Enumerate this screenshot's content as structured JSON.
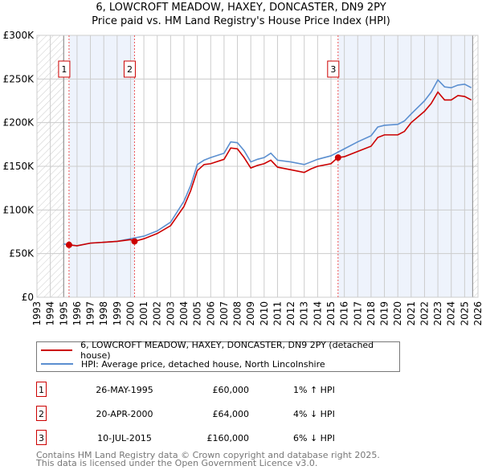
{
  "chart_data": {
    "type": "line",
    "title": "6, LOWCROFT MEADOW, HAXEY, DONCASTER, DN9 2PY",
    "subtitle": "Price paid vs. HM Land Registry's House Price Index (HPI)",
    "xlim": [
      1993,
      2026
    ],
    "ylim": [
      0,
      300000
    ],
    "yticks": [
      {
        "v": 0,
        "label": "£0"
      },
      {
        "v": 50000,
        "label": "£50K"
      },
      {
        "v": 100000,
        "label": "£100K"
      },
      {
        "v": 150000,
        "label": "£150K"
      },
      {
        "v": 200000,
        "label": "£200K"
      },
      {
        "v": 250000,
        "label": "£250K"
      },
      {
        "v": 300000,
        "label": "£300K"
      }
    ],
    "xticks": [
      "1993",
      "1994",
      "1995",
      "1996",
      "1997",
      "1998",
      "1999",
      "2000",
      "2001",
      "2002",
      "2003",
      "2004",
      "2005",
      "2006",
      "2007",
      "2008",
      "2009",
      "2010",
      "2011",
      "2012",
      "2013",
      "2014",
      "2015",
      "2016",
      "2017",
      "2018",
      "2019",
      "2020",
      "2021",
      "2022",
      "2023",
      "2024",
      "2025",
      "2026"
    ],
    "grid": true,
    "colors": {
      "price": "#cc0000",
      "hpi": "#5b8fd0",
      "shade": "#eef3fc"
    },
    "series": [
      {
        "name": "6, LOWCROFT MEADOW, HAXEY, DONCASTER, DN9 2PY (detached house)",
        "color": "#cc0000",
        "x": [
          1995.4,
          1996,
          1997,
          1998,
          1999,
          2000,
          2000.3,
          2001,
          2002,
          2003,
          2004,
          2004.5,
          2005,
          2005.5,
          2006,
          2007,
          2007.5,
          2008,
          2008.5,
          2009,
          2009.5,
          2010,
          2010.5,
          2011,
          2012,
          2013,
          2013.5,
          2014,
          2015,
          2015.5,
          2016,
          2017,
          2018,
          2018.5,
          2019,
          2020,
          2020.5,
          2021,
          2022,
          2022.5,
          2023,
          2023.5,
          2024,
          2024.5,
          2025,
          2025.5
        ],
        "y": [
          60,
          59,
          62,
          63,
          64,
          66,
          64,
          67,
          73,
          82,
          104,
          122,
          145,
          152,
          153,
          158,
          171,
          170,
          160,
          148,
          151,
          153,
          157,
          149,
          146,
          143,
          147,
          150,
          153,
          160,
          161,
          167,
          173,
          183,
          186,
          186,
          190,
          200,
          213,
          222,
          235,
          226,
          226,
          231,
          230,
          226
        ]
      },
      {
        "name": "HPI: Average price, detached house, North Lincolnshire",
        "color": "#5b8fd0",
        "x": [
          1995,
          1996,
          1997,
          1998,
          1999,
          2000,
          2001,
          2002,
          2003,
          2004,
          2004.5,
          2005,
          2005.5,
          2006,
          2007,
          2007.5,
          2008,
          2008.5,
          2009,
          2009.5,
          2010,
          2010.5,
          2011,
          2012,
          2013,
          2013.5,
          2014,
          2015,
          2015.5,
          2016,
          2017,
          2018,
          2018.5,
          2019,
          2020,
          2020.5,
          2021,
          2022,
          2022.5,
          2023,
          2023.5,
          2024,
          2024.5,
          2025,
          2025.5
        ],
        "y": [
          61,
          59,
          62,
          63,
          64,
          67,
          70,
          76,
          86,
          110,
          128,
          152,
          157,
          160,
          165,
          178,
          177,
          168,
          155,
          158,
          160,
          165,
          157,
          155,
          152,
          155,
          158,
          162,
          166,
          170,
          178,
          185,
          195,
          197,
          198,
          202,
          210,
          225,
          235,
          249,
          241,
          240,
          243,
          244,
          240
        ]
      }
    ],
    "y_units": 1000,
    "sales": [
      {
        "n": "1",
        "x": 1995.4,
        "y": 60
      },
      {
        "n": "2",
        "x": 2000.3,
        "y": 64
      },
      {
        "n": "3",
        "x": 2015.53,
        "y": 160
      }
    ],
    "shaded": [
      [
        1995.4,
        2000.3
      ],
      [
        2015.53,
        2025.6
      ]
    ],
    "hatched": [
      [
        1993,
        1995
      ],
      [
        2025.6,
        2026
      ]
    ]
  },
  "legend": {
    "price": "6, LOWCROFT MEADOW, HAXEY, DONCASTER, DN9 2PY (detached house)",
    "hpi": "HPI: Average price, detached house, North Lincolnshire"
  },
  "table": [
    {
      "n": "1",
      "date": "26-MAY-1995",
      "price": "£60,000",
      "hpi": "1% ↑ HPI"
    },
    {
      "n": "2",
      "date": "20-APR-2000",
      "price": "£64,000",
      "hpi": "4% ↓ HPI"
    },
    {
      "n": "3",
      "date": "10-JUL-2015",
      "price": "£160,000",
      "hpi": "6% ↓ HPI"
    }
  ],
  "footer": {
    "line1": "Contains HM Land Registry data © Crown copyright and database right 2025.",
    "line2": "This data is licensed under the Open Government Licence v3.0."
  }
}
